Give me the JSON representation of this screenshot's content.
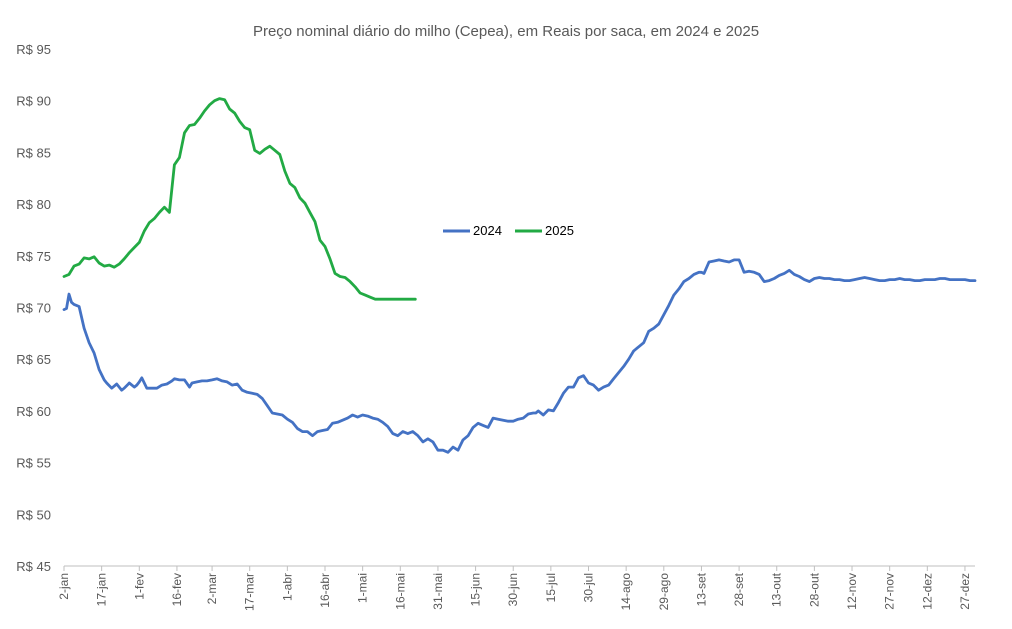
{
  "chart_data": {
    "type": "line",
    "title": "Preço nominal diário do milho (Cepea), em Reais por saca, em 2024 e 2025",
    "xlabel": "",
    "ylabel": "",
    "ylim": [
      45,
      95
    ],
    "ytick_values": [
      45,
      50,
      55,
      60,
      65,
      70,
      75,
      80,
      85,
      90,
      95
    ],
    "y_tick_labels": [
      "R$ 45",
      "R$ 50",
      "R$ 55",
      "R$ 60",
      "R$ 65",
      "R$ 70",
      "R$ 75",
      "R$ 80",
      "R$ 85",
      "R$ 90",
      "R$ 95"
    ],
    "x_unit": "day of year (1 = 1 Jan)",
    "xlim": [
      2,
      365
    ],
    "x_tick_labels": [
      "2-jan",
      "17-jan",
      "1-fev",
      "16-fev",
      "2-mar",
      "17-mar",
      "1-abr",
      "16-abr",
      "1-mai",
      "16-mai",
      "31-mai",
      "15-jun",
      "30-jun",
      "15-jul",
      "30-jul",
      "14-ago",
      "29-ago",
      "13-set",
      "28-set",
      "13-out",
      "28-out",
      "12-nov",
      "27-nov",
      "12-dez",
      "27-dez"
    ],
    "x_tick_days": [
      2,
      17,
      32,
      47,
      61,
      76,
      91,
      106,
      121,
      136,
      151,
      166,
      181,
      196,
      211,
      226,
      241,
      256,
      271,
      286,
      301,
      316,
      331,
      346,
      361
    ],
    "legend": [
      "2024",
      "2025"
    ],
    "legend_position": "center",
    "colors": {
      "s2024": "#4472C4",
      "s2025": "#22AA44",
      "axis": "#bfbfbf",
      "text": "#595959"
    },
    "series": [
      {
        "name": "2024",
        "x": [
          2,
          3,
          4,
          5,
          6,
          7,
          8,
          10,
          12,
          14,
          16,
          18,
          19,
          21,
          23,
          25,
          26,
          28,
          30,
          31,
          32,
          33,
          35,
          37,
          38,
          39,
          41,
          43,
          45,
          46,
          48,
          50,
          52,
          53,
          55,
          57,
          58,
          59,
          61,
          63,
          65,
          67,
          69,
          71,
          73,
          75,
          77,
          79,
          81,
          83,
          85,
          87,
          89,
          91,
          93,
          95,
          97,
          99,
          101,
          103,
          105,
          107,
          109,
          111,
          113,
          115,
          117,
          119,
          121,
          123,
          125,
          127,
          129,
          131,
          133,
          135,
          137,
          139,
          141,
          143,
          145,
          147,
          149,
          151,
          153,
          155,
          157,
          159,
          161,
          163,
          165,
          167,
          169,
          171,
          173,
          175,
          177,
          179,
          181,
          183,
          185,
          187,
          189,
          190,
          191,
          193,
          195,
          197,
          199,
          201,
          203,
          205,
          207,
          209,
          211,
          213,
          215,
          217,
          219,
          221,
          223,
          225,
          227,
          229,
          231,
          233,
          235,
          237,
          239,
          241,
          243,
          245,
          247,
          249,
          251,
          253,
          255,
          256,
          257,
          259,
          261,
          263,
          265,
          267,
          269,
          271,
          273,
          275,
          277,
          279,
          281,
          283,
          285,
          287,
          289,
          291,
          293,
          295,
          297,
          299,
          301,
          303,
          305,
          307,
          309,
          311,
          313,
          315,
          317,
          319,
          321,
          323,
          325,
          327,
          329,
          331,
          333,
          335,
          337,
          339,
          341,
          343,
          345,
          347,
          349,
          351,
          353,
          355,
          357,
          359,
          361,
          363,
          365
        ],
        "values": [
          69.8,
          69.9,
          71.3,
          70.5,
          70.3,
          70.2,
          70.1,
          68.0,
          66.6,
          65.6,
          64.0,
          63.0,
          62.7,
          62.2,
          62.6,
          62.0,
          62.2,
          62.7,
          62.3,
          62.5,
          62.8,
          63.2,
          62.2,
          62.2,
          62.2,
          62.2,
          62.5,
          62.6,
          62.9,
          63.1,
          63.0,
          63.0,
          62.3,
          62.7,
          62.8,
          62.9,
          62.9,
          62.9,
          63.0,
          63.1,
          62.9,
          62.8,
          62.5,
          62.6,
          62.0,
          61.8,
          61.7,
          61.6,
          61.2,
          60.5,
          59.8,
          59.7,
          59.6,
          59.2,
          58.9,
          58.3,
          58.0,
          58.0,
          57.6,
          58.0,
          58.1,
          58.2,
          58.8,
          58.9,
          59.1,
          59.3,
          59.6,
          59.4,
          59.6,
          59.5,
          59.3,
          59.2,
          58.9,
          58.5,
          57.8,
          57.6,
          58.0,
          57.8,
          58.0,
          57.6,
          57.0,
          57.3,
          57.0,
          56.2,
          56.2,
          56.0,
          56.5,
          56.2,
          57.2,
          57.6,
          58.4,
          58.8,
          58.6,
          58.4,
          59.3,
          59.2,
          59.1,
          59.0,
          59.0,
          59.2,
          59.3,
          59.7,
          59.8,
          59.8,
          60.0,
          59.6,
          60.1,
          60.0,
          60.8,
          61.7,
          62.3,
          62.3,
          63.2,
          63.4,
          62.7,
          62.5,
          62.0,
          62.3,
          62.5,
          63.1,
          63.7,
          64.3,
          65.0,
          65.8,
          66.2,
          66.6,
          67.7,
          68.0,
          68.4,
          69.3,
          70.2,
          71.2,
          71.8,
          72.5,
          72.8,
          73.2,
          73.4,
          73.4,
          73.3,
          74.4,
          74.5,
          74.6,
          74.5,
          74.4,
          74.6,
          74.6,
          73.4,
          73.5,
          73.4,
          73.2,
          72.5,
          72.6,
          72.8,
          73.1,
          73.3,
          73.6,
          73.2,
          73.0,
          72.7,
          72.5,
          72.8,
          72.9,
          72.8,
          72.8,
          72.7,
          72.7,
          72.6,
          72.6,
          72.7,
          72.8,
          72.9,
          72.8,
          72.7,
          72.6,
          72.6,
          72.7,
          72.7,
          72.8,
          72.7,
          72.7,
          72.6,
          72.6,
          72.7,
          72.7,
          72.7,
          72.8,
          72.8,
          72.7,
          72.7,
          72.7,
          72.7,
          72.6,
          72.6
        ]
      },
      {
        "name": "2025",
        "x": [
          2,
          4,
          6,
          8,
          10,
          12,
          14,
          16,
          18,
          20,
          22,
          24,
          26,
          28,
          30,
          32,
          34,
          36,
          38,
          40,
          42,
          44,
          46,
          48,
          50,
          52,
          54,
          56,
          58,
          60,
          62,
          64,
          66,
          68,
          70,
          72,
          74,
          76,
          78,
          80,
          82,
          84,
          86,
          88,
          90,
          92,
          94,
          96,
          98,
          100,
          102,
          104,
          106,
          108,
          110,
          112,
          114,
          116,
          118,
          120,
          122,
          124,
          126,
          128,
          130,
          132,
          134,
          136,
          138,
          140,
          142
        ],
        "values": [
          73.0,
          73.2,
          74.0,
          74.2,
          74.8,
          74.7,
          74.9,
          74.3,
          74.0,
          74.1,
          73.9,
          74.2,
          74.7,
          75.3,
          75.8,
          76.3,
          77.4,
          78.2,
          78.6,
          79.2,
          79.7,
          79.2,
          83.8,
          84.5,
          86.9,
          87.6,
          87.7,
          88.3,
          89.0,
          89.6,
          90.0,
          90.2,
          90.1,
          89.2,
          88.8,
          88.0,
          87.4,
          87.2,
          85.2,
          84.9,
          85.3,
          85.6,
          85.2,
          84.8,
          83.2,
          82.0,
          81.6,
          80.6,
          80.1,
          79.2,
          78.3,
          76.5,
          75.9,
          74.7,
          73.3,
          73.0,
          72.9,
          72.5,
          72.0,
          71.4,
          71.2,
          71.0,
          70.8,
          70.8,
          70.8,
          70.8,
          70.8,
          70.8,
          70.8,
          70.8,
          70.8
        ]
      }
    ]
  }
}
